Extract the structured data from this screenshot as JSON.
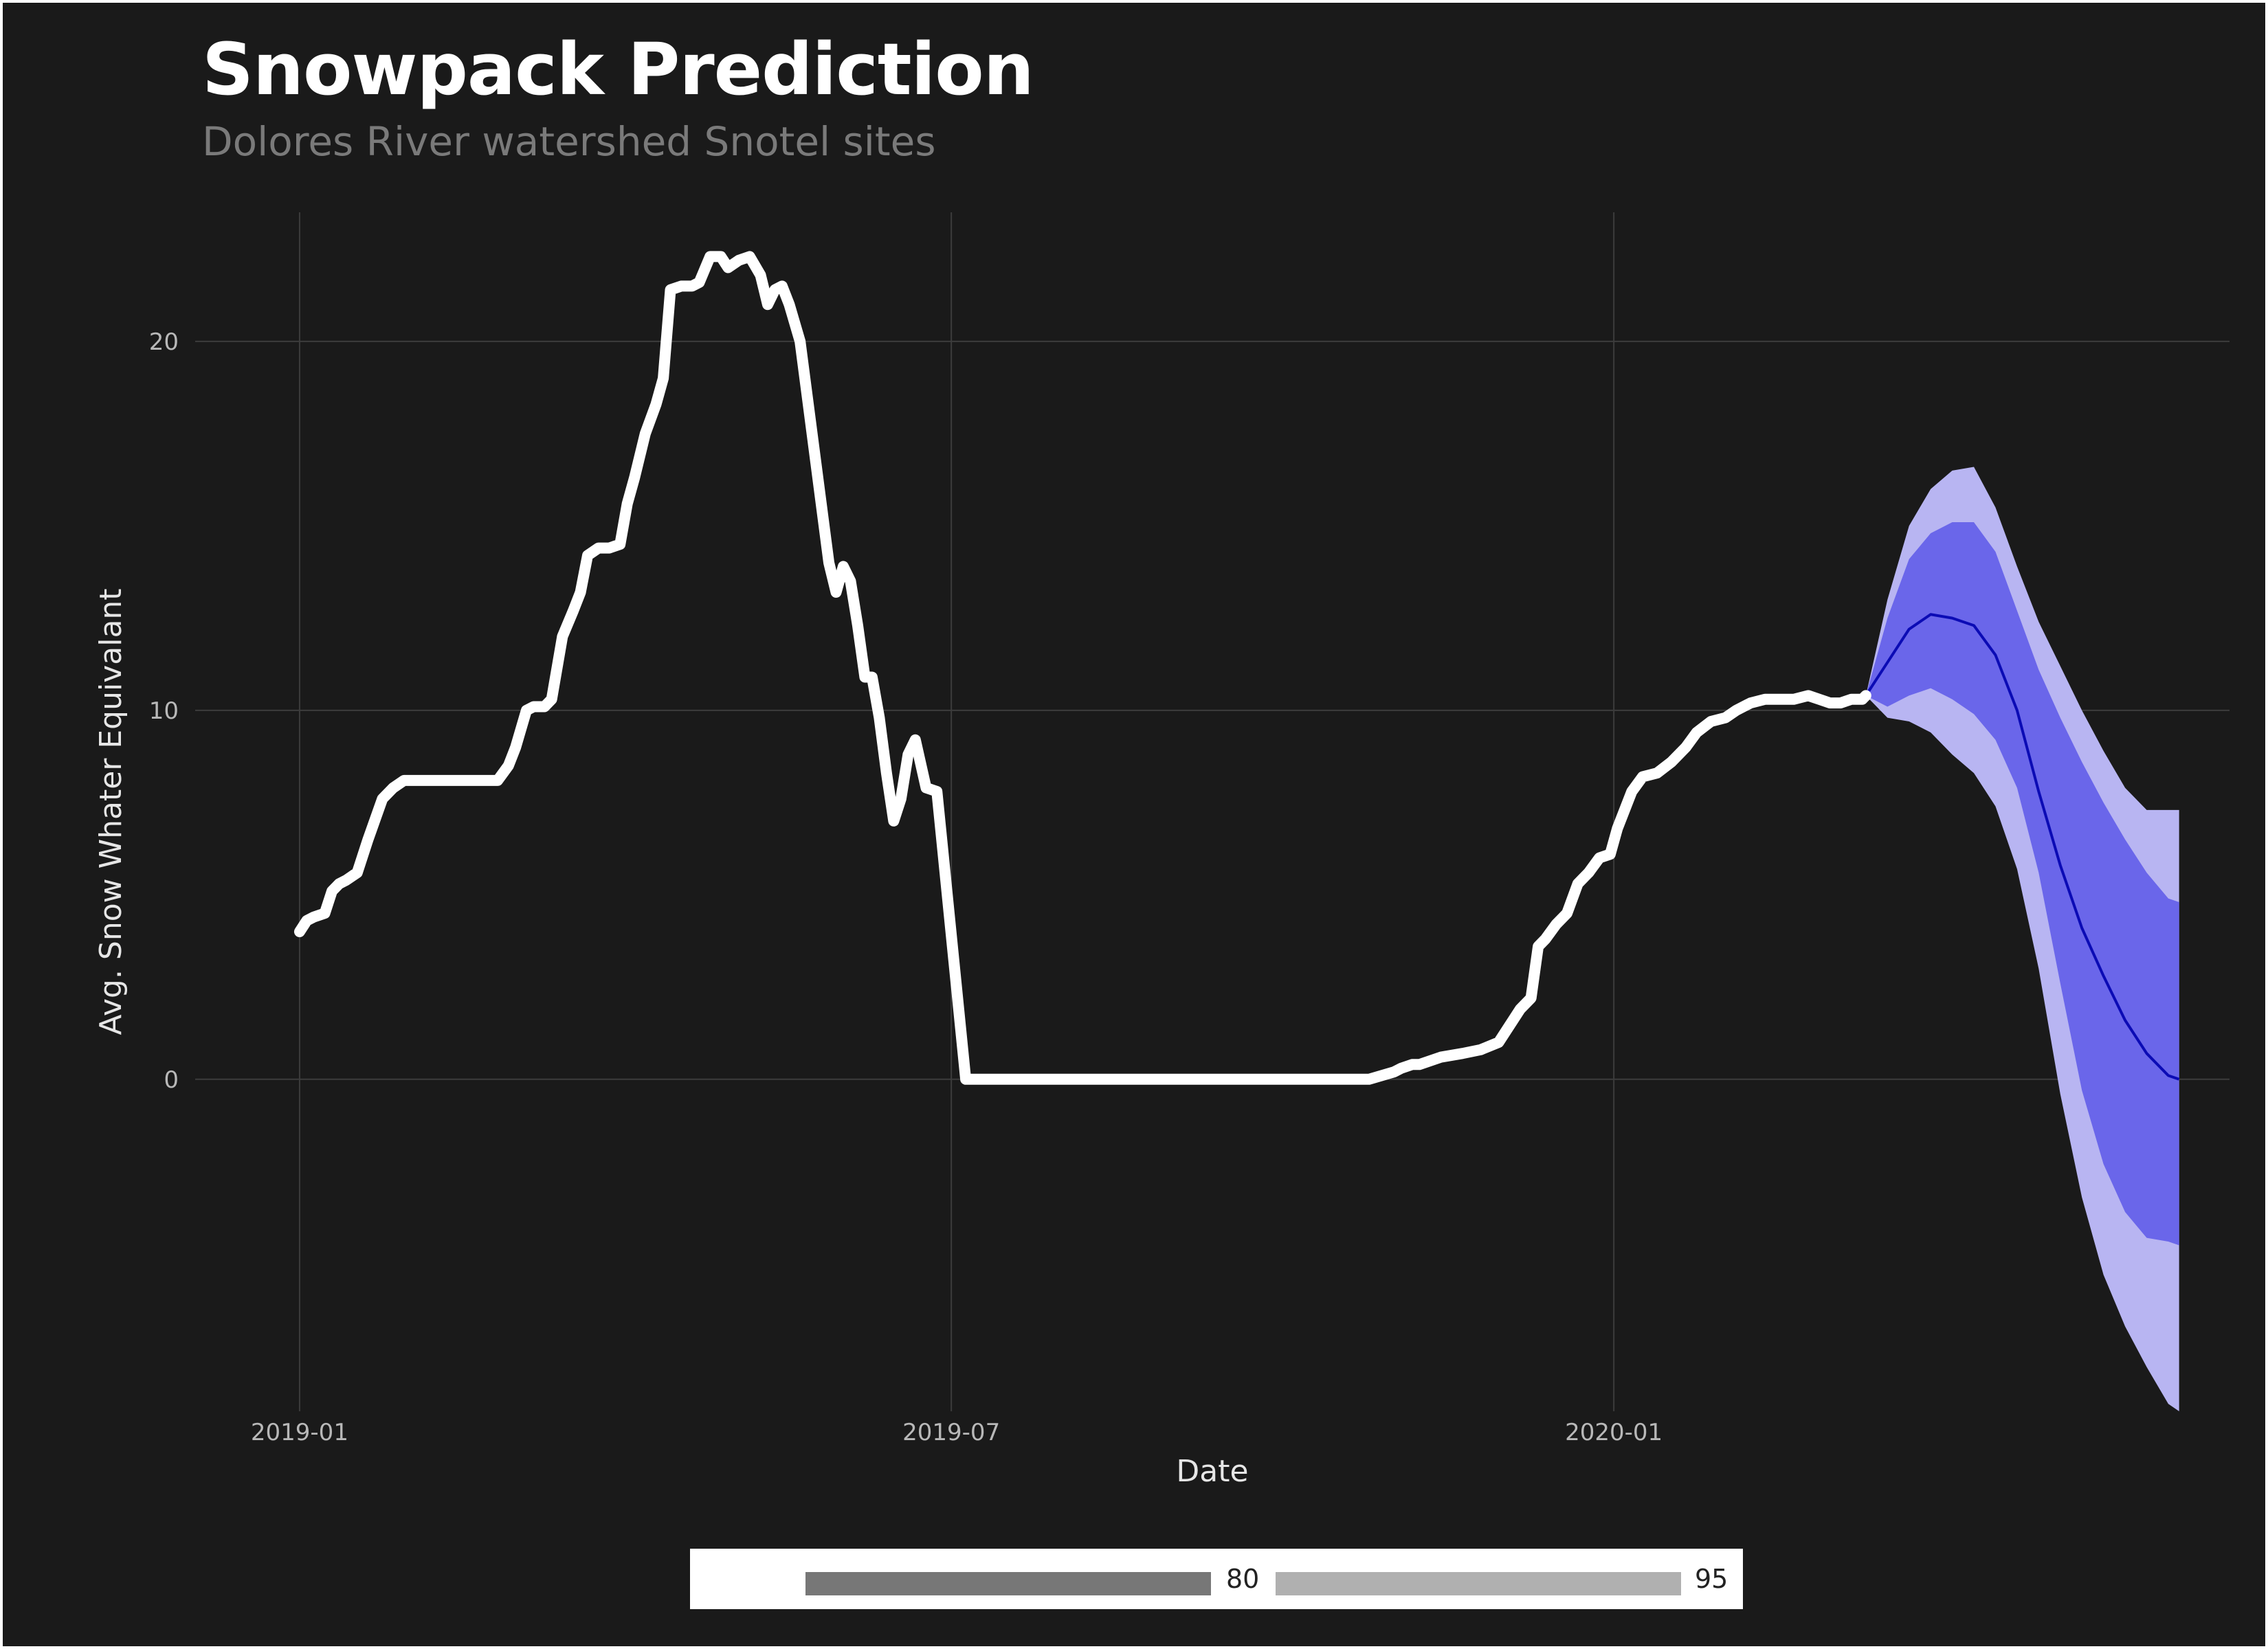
{
  "header": {
    "title": "Snowpack Prediction",
    "subtitle": "Dolores River watershed Snotel sites"
  },
  "legend": {
    "items": [
      {
        "label": "80",
        "color": "#777777"
      },
      {
        "label": "95",
        "color": "#b0b0b0"
      }
    ]
  },
  "colors": {
    "background": "#1a1a1a",
    "grid": "#3c3c3c",
    "observed_line": "#ffffff",
    "forecast_line": "#0b0bb5",
    "band_80": "#6a66ea",
    "band_95": "#b8b5f2",
    "axis_text": "#b8b8b8"
  },
  "chart_data": {
    "type": "line",
    "title": "Snowpack Prediction",
    "subtitle": "Dolores River watershed Snotel sites",
    "xlabel": "Date",
    "ylabel": "Avg. Snow Whater Equivalant",
    "x_type": "date",
    "xlim": [
      "2018-12-03",
      "2020-06-20"
    ],
    "ylim": [
      -9,
      23.5
    ],
    "x_ticks": [
      {
        "label": "2019-01",
        "date": "2019-01-01"
      },
      {
        "label": "2019-07",
        "date": "2019-07-01"
      },
      {
        "label": "2020-01",
        "date": "2020-01-01"
      }
    ],
    "y_ticks": [
      0,
      10,
      20
    ],
    "grid": true,
    "legend_position": "bottom",
    "observed": {
      "x": [
        "2019-01-01",
        "2019-01-03",
        "2019-01-05",
        "2019-01-08",
        "2019-01-10",
        "2019-01-12",
        "2019-01-14",
        "2019-01-17",
        "2019-01-20",
        "2019-01-24",
        "2019-01-27",
        "2019-01-30",
        "2019-02-01",
        "2019-02-04",
        "2019-02-07",
        "2019-02-09",
        "2019-02-12",
        "2019-02-14",
        "2019-02-18",
        "2019-02-22",
        "2019-02-25",
        "2019-02-28",
        "2019-03-02",
        "2019-03-05",
        "2019-03-07",
        "2019-03-10",
        "2019-03-12",
        "2019-03-15",
        "2019-03-18",
        "2019-03-20",
        "2019-03-22",
        "2019-03-25",
        "2019-03-28",
        "2019-03-31",
        "2019-04-02",
        "2019-04-04",
        "2019-04-07",
        "2019-04-10",
        "2019-04-12",
        "2019-04-14",
        "2019-04-17",
        "2019-04-20",
        "2019-04-22",
        "2019-04-25",
        "2019-04-28",
        "2019-04-30",
        "2019-05-03",
        "2019-05-06",
        "2019-05-09",
        "2019-05-11",
        "2019-05-13",
        "2019-05-15",
        "2019-05-17",
        "2019-05-20",
        "2019-05-22",
        "2019-05-24",
        "2019-05-26",
        "2019-05-28",
        "2019-05-30",
        "2019-06-01",
        "2019-06-03",
        "2019-06-05",
        "2019-06-07",
        "2019-06-09",
        "2019-06-11",
        "2019-06-13",
        "2019-06-15",
        "2019-06-17",
        "2019-06-19",
        "2019-06-21",
        "2019-06-24",
        "2019-06-27",
        "2019-07-05",
        "2019-08-15",
        "2019-09-20",
        "2019-10-25",
        "2019-11-01",
        "2019-11-03",
        "2019-11-06",
        "2019-11-08",
        "2019-11-11",
        "2019-11-14",
        "2019-11-20",
        "2019-11-25",
        "2019-11-30",
        "2019-12-02",
        "2019-12-04",
        "2019-12-06",
        "2019-12-09",
        "2019-12-11",
        "2019-12-13",
        "2019-12-16",
        "2019-12-19",
        "2019-12-22",
        "2019-12-25",
        "2019-12-28",
        "2019-12-31",
        "2020-01-02",
        "2020-01-06",
        "2020-01-09",
        "2020-01-13",
        "2020-01-17",
        "2020-01-21",
        "2020-01-24",
        "2020-01-28",
        "2020-02-01",
        "2020-02-04",
        "2020-02-08",
        "2020-02-12",
        "2020-02-16",
        "2020-02-20",
        "2020-02-24",
        "2020-02-27",
        "2020-03-01",
        "2020-03-04",
        "2020-03-07",
        "2020-03-10",
        "2020-03-11"
      ],
      "y": [
        4.0,
        4.3,
        4.4,
        4.5,
        5.1,
        5.3,
        5.4,
        5.6,
        6.5,
        7.6,
        7.9,
        8.1,
        8.1,
        8.1,
        8.1,
        8.1,
        8.1,
        8.1,
        8.1,
        8.1,
        8.1,
        8.5,
        9.0,
        10.0,
        10.1,
        10.1,
        10.3,
        12.0,
        12.7,
        13.2,
        14.2,
        14.4,
        14.4,
        14.5,
        15.6,
        16.3,
        17.5,
        18.3,
        19.0,
        21.4,
        21.5,
        21.5,
        21.6,
        22.3,
        22.3,
        22.0,
        22.2,
        22.3,
        21.8,
        21.0,
        21.4,
        21.5,
        21.0,
        20.0,
        18.5,
        17.0,
        15.5,
        14.0,
        13.2,
        13.9,
        13.5,
        12.3,
        10.9,
        10.9,
        9.8,
        8.3,
        7.0,
        7.6,
        8.8,
        9.2,
        7.9,
        7.8,
        0.0,
        0.0,
        0.0,
        0.0,
        0.2,
        0.3,
        0.4,
        0.4,
        0.5,
        0.6,
        0.7,
        0.8,
        1.0,
        1.3,
        1.6,
        1.9,
        2.2,
        3.6,
        3.8,
        4.2,
        4.5,
        5.3,
        5.6,
        6.0,
        6.1,
        6.8,
        7.8,
        8.2,
        8.3,
        8.6,
        9.0,
        9.4,
        9.7,
        9.8,
        10.0,
        10.2,
        10.3,
        10.3,
        10.3,
        10.4,
        10.3,
        10.2,
        10.2,
        10.3,
        10.3,
        10.4
      ]
    },
    "forecast": {
      "x": [
        "2020-03-11",
        "2020-03-17",
        "2020-03-23",
        "2020-03-29",
        "2020-04-04",
        "2020-04-10",
        "2020-04-16",
        "2020-04-22",
        "2020-04-28",
        "2020-05-04",
        "2020-05-10",
        "2020-05-16",
        "2020-05-22",
        "2020-05-28",
        "2020-06-03",
        "2020-06-06"
      ],
      "mean": [
        10.4,
        11.3,
        12.2,
        12.6,
        12.5,
        12.3,
        11.5,
        10.0,
        7.8,
        5.8,
        4.1,
        2.8,
        1.6,
        0.7,
        0.1,
        0.0
      ],
      "lo80": [
        10.4,
        10.1,
        10.4,
        10.6,
        10.3,
        9.9,
        9.2,
        7.9,
        5.6,
        2.6,
        -0.3,
        -2.3,
        -3.6,
        -4.3,
        -4.4,
        -4.5
      ],
      "hi80": [
        10.4,
        12.5,
        14.1,
        14.8,
        15.1,
        15.1,
        14.3,
        12.7,
        11.1,
        9.8,
        8.6,
        7.5,
        6.5,
        5.6,
        4.9,
        4.8
      ],
      "lo95": [
        10.4,
        9.8,
        9.7,
        9.4,
        8.8,
        8.3,
        7.4,
        5.7,
        3.0,
        -0.4,
        -3.2,
        -5.3,
        -6.7,
        -7.8,
        -8.8,
        -9.0
      ],
      "hi95": [
        10.4,
        13.0,
        15.0,
        16.0,
        16.5,
        16.6,
        15.5,
        13.9,
        12.4,
        11.2,
        10.0,
        8.9,
        7.9,
        7.3,
        7.3,
        7.3
      ]
    }
  }
}
